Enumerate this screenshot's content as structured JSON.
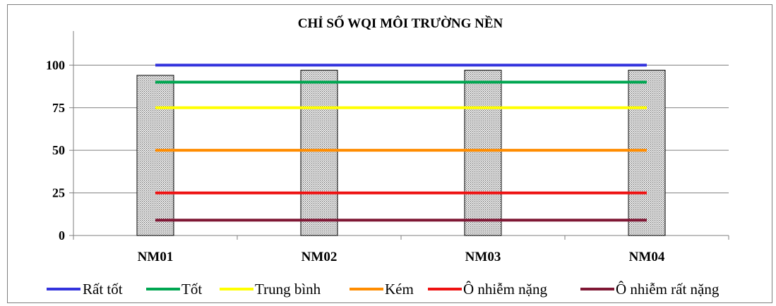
{
  "chart_data": {
    "type": "bar",
    "title": "CHỈ SỐ WQI MÔI TRƯỜNG NỀN",
    "xlabel": "",
    "ylabel": "",
    "categories": [
      "NM01",
      "NM02",
      "NM03",
      "NM04"
    ],
    "ylim": [
      0,
      120
    ],
    "yticks": [
      0,
      25,
      50,
      75,
      100
    ],
    "grid": true,
    "legend_position": "bottom",
    "bars": {
      "values": [
        94,
        97,
        97,
        97
      ],
      "pattern": "dotted",
      "color": "#808080"
    },
    "series": [
      {
        "name": "Rất tốt",
        "type": "line",
        "values": [
          100,
          100,
          100,
          100
        ],
        "color": "#3333dd"
      },
      {
        "name": "Tốt",
        "type": "line",
        "values": [
          90,
          90,
          90,
          90
        ],
        "color": "#00a651"
      },
      {
        "name": "Trung bình",
        "type": "line",
        "values": [
          75,
          75,
          75,
          75
        ],
        "color": "#ffff00"
      },
      {
        "name": "Kém",
        "type": "line",
        "values": [
          50,
          50,
          50,
          50
        ],
        "color": "#ff8c00"
      },
      {
        "name": "Ô nhiễm nặng",
        "type": "line",
        "values": [
          25,
          25,
          25,
          25
        ],
        "color": "#ee1111"
      },
      {
        "name": "Ô nhiễm rất nặng",
        "type": "line",
        "values": [
          9,
          9,
          9,
          9
        ],
        "color": "#7f1734"
      }
    ]
  }
}
